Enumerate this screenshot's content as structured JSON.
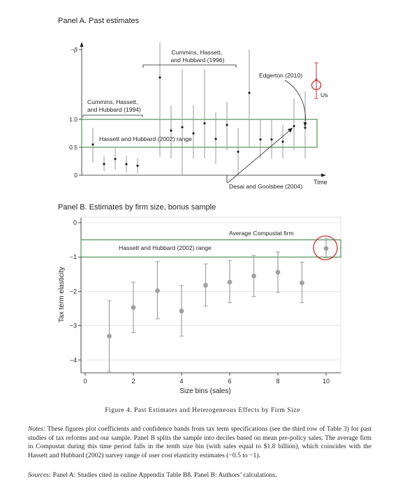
{
  "chart_data": [
    {
      "type": "scatter",
      "title": "Panel A. Past estimates",
      "xlabel": "Time",
      "ylabel": "",
      "ylim": [
        0,
        2.0
      ],
      "yticks": [
        {
          "value": 0,
          "label": "0"
        },
        {
          "value": 0.5,
          "label": "0.5"
        },
        {
          "value": 1.0,
          "label": "1.0"
        },
        {
          "value": 2.0,
          "label": "−β"
        }
      ],
      "grid": false,
      "range_band": {
        "label": "Hassett and Hubbard (2002) range",
        "y": [
          0.5,
          1.0
        ],
        "color": "#2e7d32"
      },
      "series": [
        {
          "points": [
            {
              "x": 1,
              "y": 0.55,
              "lo": 0.22,
              "hi": 0.85
            },
            {
              "x": 2,
              "y": 0.2,
              "lo": 0.07,
              "hi": 0.34
            },
            {
              "x": 3,
              "y": 0.29,
              "lo": 0.1,
              "hi": 0.48
            },
            {
              "x": 4,
              "y": 0.2,
              "lo": 0.05,
              "hi": 0.35
            },
            {
              "x": 5,
              "y": 0.17,
              "lo": 0.03,
              "hi": 0.31
            },
            {
              "x": 7,
              "y": 1.6,
              "lo": 0.33,
              "hi": 2.1
            },
            {
              "x": 8,
              "y": 0.8,
              "lo": 0.3,
              "hi": 1.2
            },
            {
              "x": 9,
              "y": 0.86,
              "lo": 0.0,
              "hi": 1.72
            },
            {
              "x": 10,
              "y": 0.75,
              "lo": 0.3,
              "hi": 1.2
            },
            {
              "x": 11,
              "y": 0.93,
              "lo": 0.3,
              "hi": 1.72
            },
            {
              "x": 12,
              "y": 0.65,
              "lo": 0.2,
              "hi": 1.1
            },
            {
              "x": 13,
              "y": 0.9,
              "lo": 0.45,
              "hi": 1.25
            },
            {
              "x": 14,
              "y": 0.42,
              "lo": 0.0,
              "hi": 0.84
            },
            {
              "x": 15,
              "y": 1.38,
              "lo": 0.5,
              "hi": 2.0
            },
            {
              "x": 16,
              "y": 0.64,
              "lo": 0.3,
              "hi": 1.0
            },
            {
              "x": 17,
              "y": 0.64,
              "lo": 0.3,
              "hi": 1.0
            },
            {
              "x": 18,
              "y": 0.6,
              "lo": 0.3,
              "hi": 0.9
            },
            {
              "x": 19,
              "y": 0.88,
              "lo": 0.45,
              "hi": 1.3
            },
            {
              "x": 20,
              "y": 0.85,
              "lo": 0.3,
              "hi": 1.4
            }
          ]
        },
        {
          "name": "Us",
          "points": [
            {
              "x": 21,
              "y": 1.57,
              "lo": 1.3,
              "hi": 1.81
            }
          ],
          "color": "#d32f2f"
        }
      ],
      "annotations": [
        {
          "text": "Cummins, Hassett,\nand Hubbard (1996)"
        },
        {
          "text": "Cummins, Hassett,\nand Hubbard (1994)"
        },
        {
          "text": "Edgerton (2010)"
        },
        {
          "text": "Desai and Goolsbee (2004)"
        },
        {
          "text": "Us"
        }
      ]
    },
    {
      "type": "scatter",
      "title": "Panel B. Estimates by firm size, bonus sample",
      "xlabel": "Size bins (sales)",
      "ylabel": "Tax term elasticity",
      "xlim": [
        0,
        10.5
      ],
      "ylim": [
        -4.3,
        0
      ],
      "xticks": [
        "0",
        "2",
        "4",
        "6",
        "8",
        "10"
      ],
      "yticks": [
        "0",
        "−1",
        "−2",
        "−3",
        "−4"
      ],
      "grid": true,
      "range_band": {
        "label": "Hassett and Hubbard (2002) range",
        "y": [
          -1.0,
          -0.5
        ],
        "color": "#2e7d32"
      },
      "series": [
        {
          "points": [
            {
              "x": 1,
              "y": -3.3,
              "lo": -4.33,
              "hi": -2.27
            },
            {
              "x": 2,
              "y": -2.47,
              "lo": -3.2,
              "hi": -1.73
            },
            {
              "x": 3,
              "y": -1.98,
              "lo": -2.8,
              "hi": -1.13
            },
            {
              "x": 4,
              "y": -2.57,
              "lo": -3.3,
              "hi": -1.83
            },
            {
              "x": 5,
              "y": -1.82,
              "lo": -2.43,
              "hi": -1.2
            },
            {
              "x": 6,
              "y": -1.73,
              "lo": -2.33,
              "hi": -1.1
            },
            {
              "x": 7,
              "y": -1.55,
              "lo": -2.15,
              "hi": -0.95
            },
            {
              "x": 8,
              "y": -1.44,
              "lo": -2.03,
              "hi": -0.85
            },
            {
              "x": 9,
              "y": -1.75,
              "lo": -2.33,
              "hi": -1.15
            },
            {
              "x": 10,
              "y": -0.75,
              "lo": -1.02,
              "hi": -0.45
            }
          ],
          "color": "#a0a0a0"
        }
      ],
      "annotations": [
        {
          "text": "Average Compustat firm"
        }
      ]
    }
  ],
  "caption": "Figure 4. Past Estimates and Heterogeneous Effects by Firm Size",
  "notes_label": "Notes:",
  "notes_text": "These figures plot coefficients and confidence bands from tax term specifications (see the third row of Table 3) for past studies of tax reforms and our sample. Panel B splits the sample into deciles based on mean pre-policy sales. The average firm in Compustat during this time period falls in the tenth size bin (with sales equal to $1.8 billion), which coincides with the Hassett and Hubbard (2002) survey range of user cost elasticity estimates (−0.5 to −1).",
  "sources_label": "Sources:",
  "sources_text": "Panel A: Studies cited in online Appendix Table B8. Panel B: Authors’ calculations."
}
